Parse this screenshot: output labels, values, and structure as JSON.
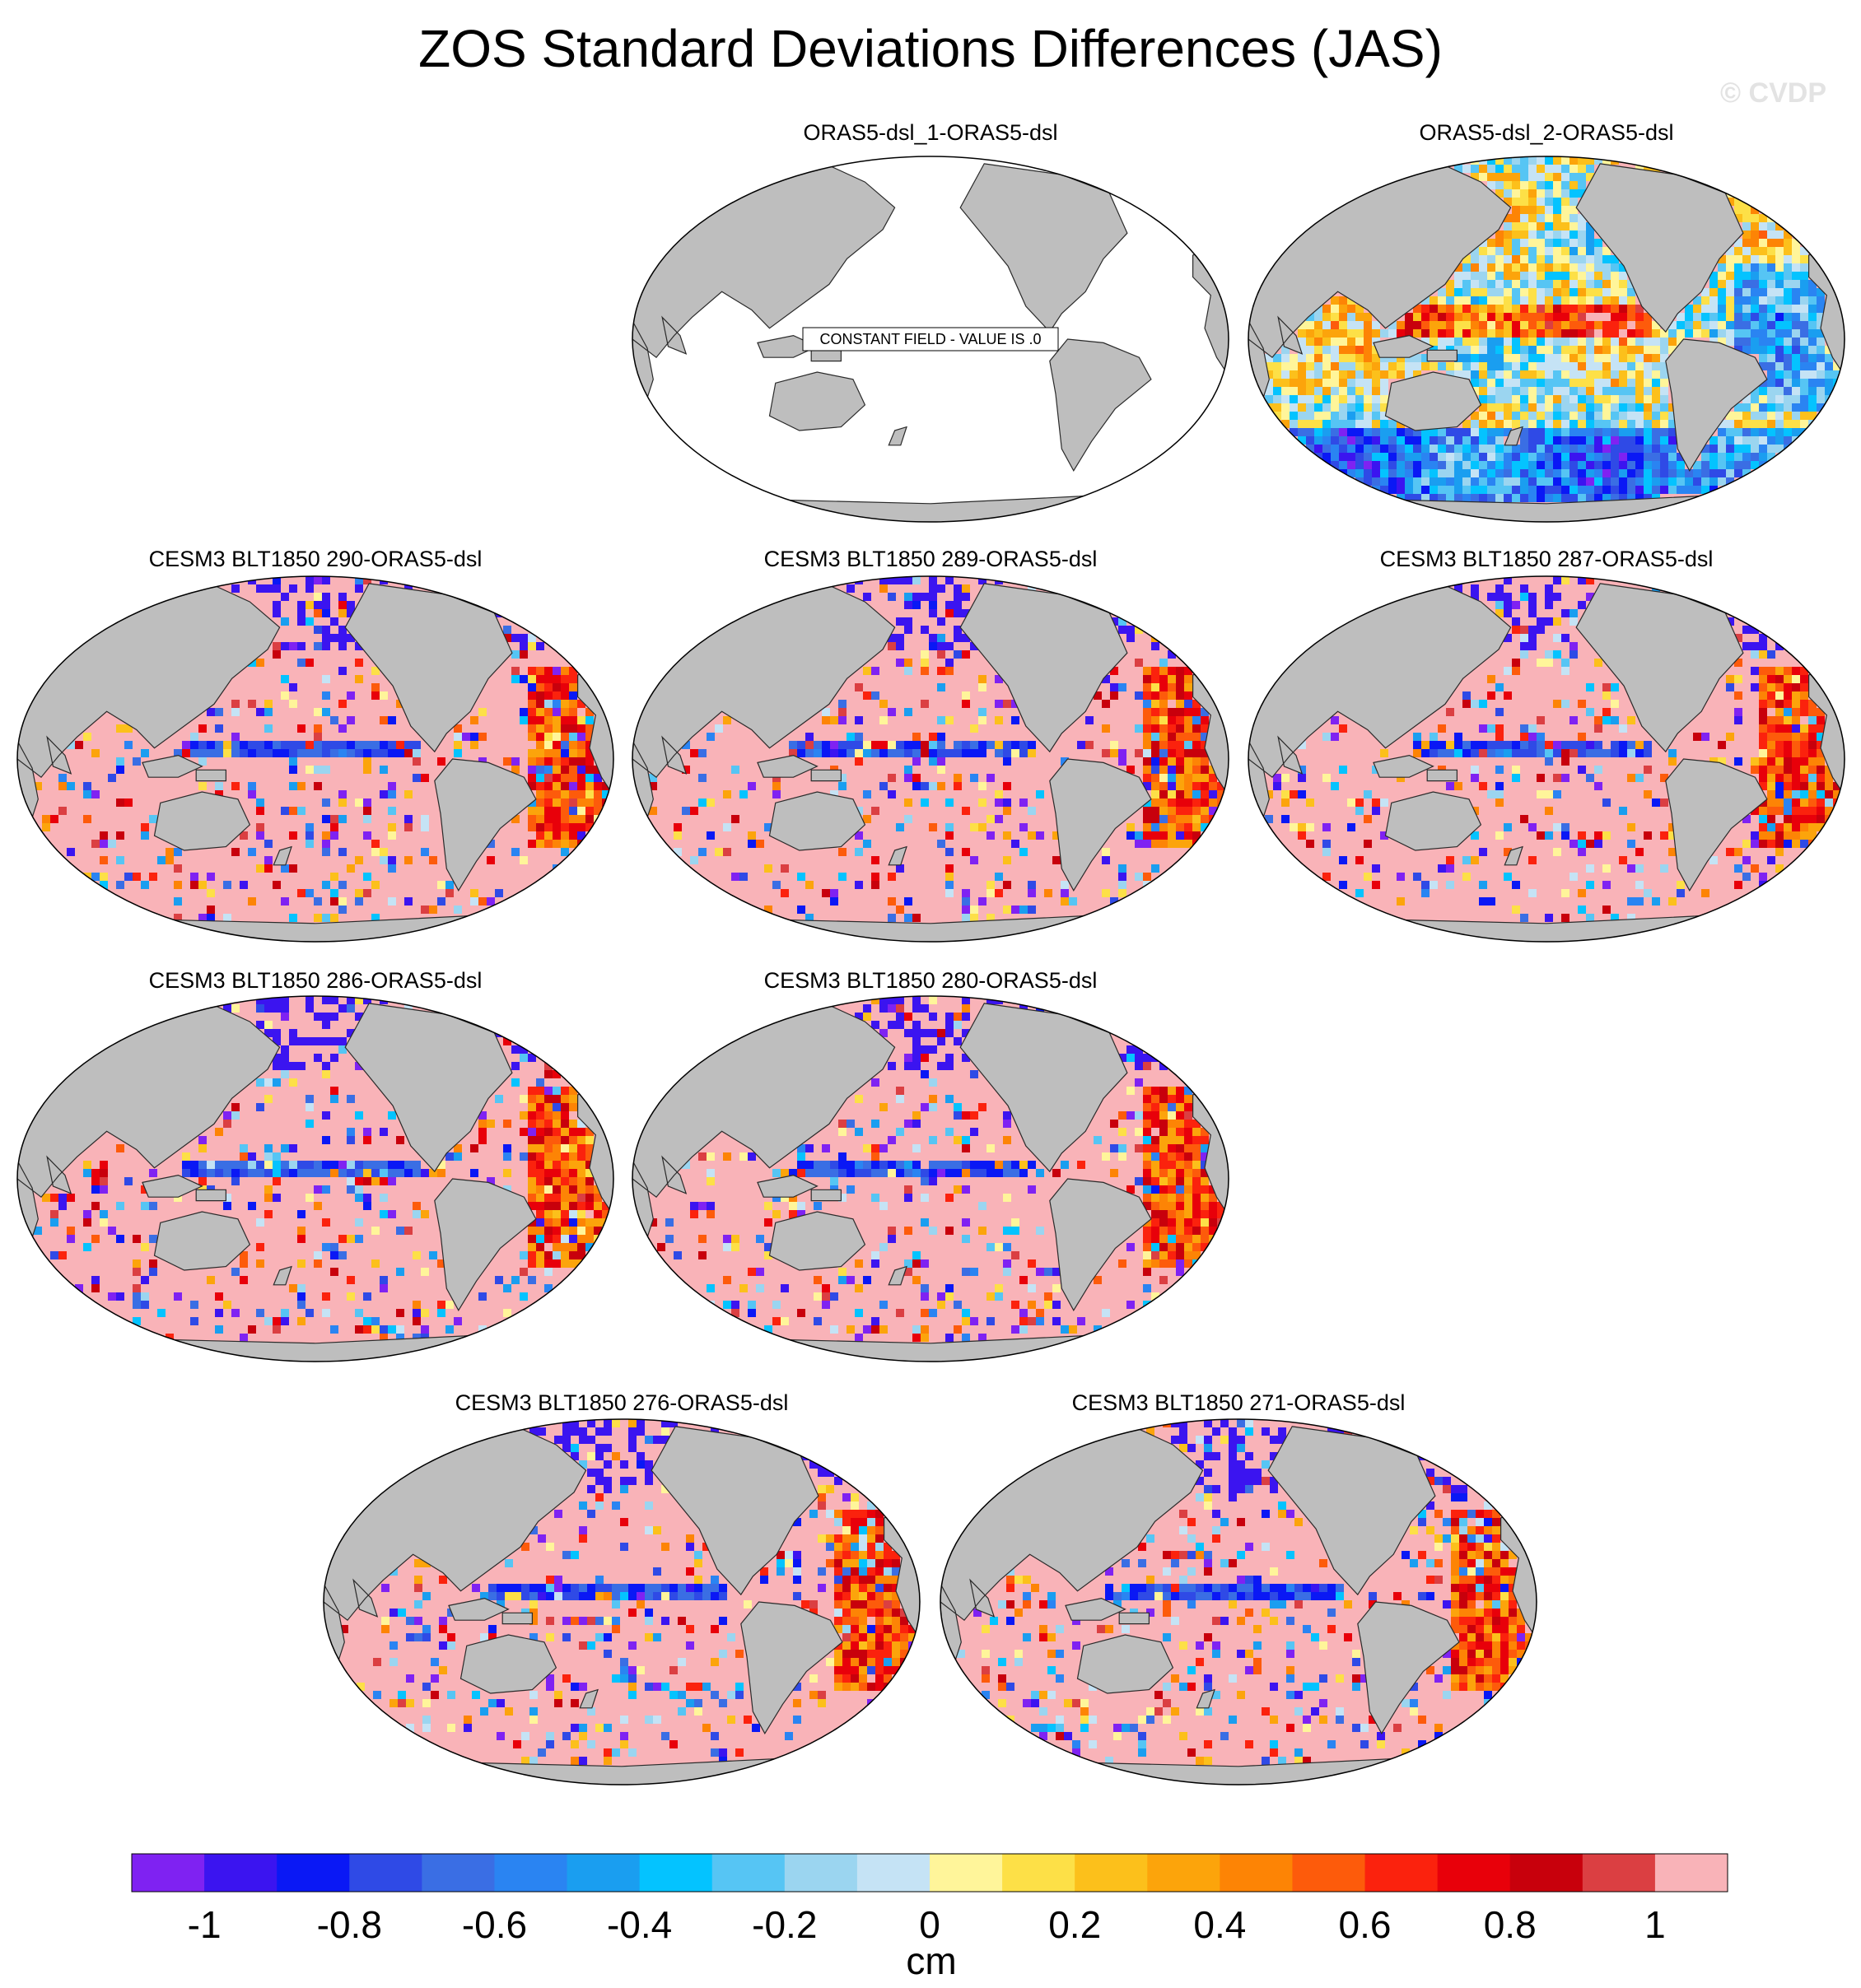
{
  "title": "ZOS Standard Deviations Differences (JAS)",
  "watermark": "© CVDP",
  "colors": {
    "land": "#bebebe",
    "land_edge": "#2a2a2a",
    "ocean_neutral": "#ffffff",
    "background_fill": "#f9b3b8",
    "palette": [
      "#7f22f2",
      "#3b14f0",
      "#0a18f5",
      "#2f4ae6",
      "#3a6ee4",
      "#2a84f2",
      "#1a9ef0",
      "#04c3ff",
      "#56c5f4",
      "#9bd5f0",
      "#c5e3f5",
      "#fff59a",
      "#fde047",
      "#fcc01b",
      "#fca40b",
      "#fd8405",
      "#fd5b0b",
      "#fb220d",
      "#e8000a",
      "#c8000c",
      "#db3f42",
      "#f9b3b8"
    ]
  },
  "chart_data": [
    {
      "type": "map",
      "panel_title": "ORAS5-dsl_1-ORAS5-dsl",
      "constant_field": true,
      "annotation": "CONSTANT FIELD - VALUE IS .0",
      "pattern": "zero"
    },
    {
      "type": "map",
      "panel_title": "ORAS5-dsl_2-ORAS5-dsl",
      "constant_field": false,
      "pattern": "mixed"
    },
    {
      "type": "map",
      "panel_title": "CESM3 BLT1850 290-ORAS5-dsl",
      "constant_field": false,
      "pattern": "model"
    },
    {
      "type": "map",
      "panel_title": "CESM3 BLT1850 289-ORAS5-dsl",
      "constant_field": false,
      "pattern": "model"
    },
    {
      "type": "map",
      "panel_title": "CESM3 BLT1850 287-ORAS5-dsl",
      "constant_field": false,
      "pattern": "model"
    },
    {
      "type": "map",
      "panel_title": "CESM3 BLT1850 286-ORAS5-dsl",
      "constant_field": false,
      "pattern": "model"
    },
    {
      "type": "map",
      "panel_title": "CESM3 BLT1850 280-ORAS5-dsl",
      "constant_field": false,
      "pattern": "model"
    },
    {
      "type": "map",
      "panel_title": "CESM3 BLT1850 276-ORAS5-dsl",
      "constant_field": false,
      "pattern": "model"
    },
    {
      "type": "map",
      "panel_title": "CESM3 BLT1850 271-ORAS5-dsl",
      "constant_field": false,
      "pattern": "model"
    }
  ],
  "colorbar": {
    "levels": [
      -1.1,
      -1,
      -0.9,
      -0.8,
      -0.7,
      -0.6,
      -0.5,
      -0.4,
      -0.3,
      -0.2,
      -0.1,
      0,
      0.1,
      0.2,
      0.3,
      0.4,
      0.5,
      0.6,
      0.7,
      0.8,
      0.9,
      1,
      1.1
    ],
    "tick_values": [
      -1,
      -0.8,
      -0.6,
      -0.4,
      -0.2,
      0,
      0.2,
      0.4,
      0.6,
      0.8,
      1
    ],
    "tick_labels": [
      "-1",
      "-0.8",
      "-0.6",
      "-0.4",
      "-0.2",
      "0",
      "0.2",
      "0.4",
      "0.6",
      "0.8",
      "1"
    ],
    "units": "cm"
  }
}
